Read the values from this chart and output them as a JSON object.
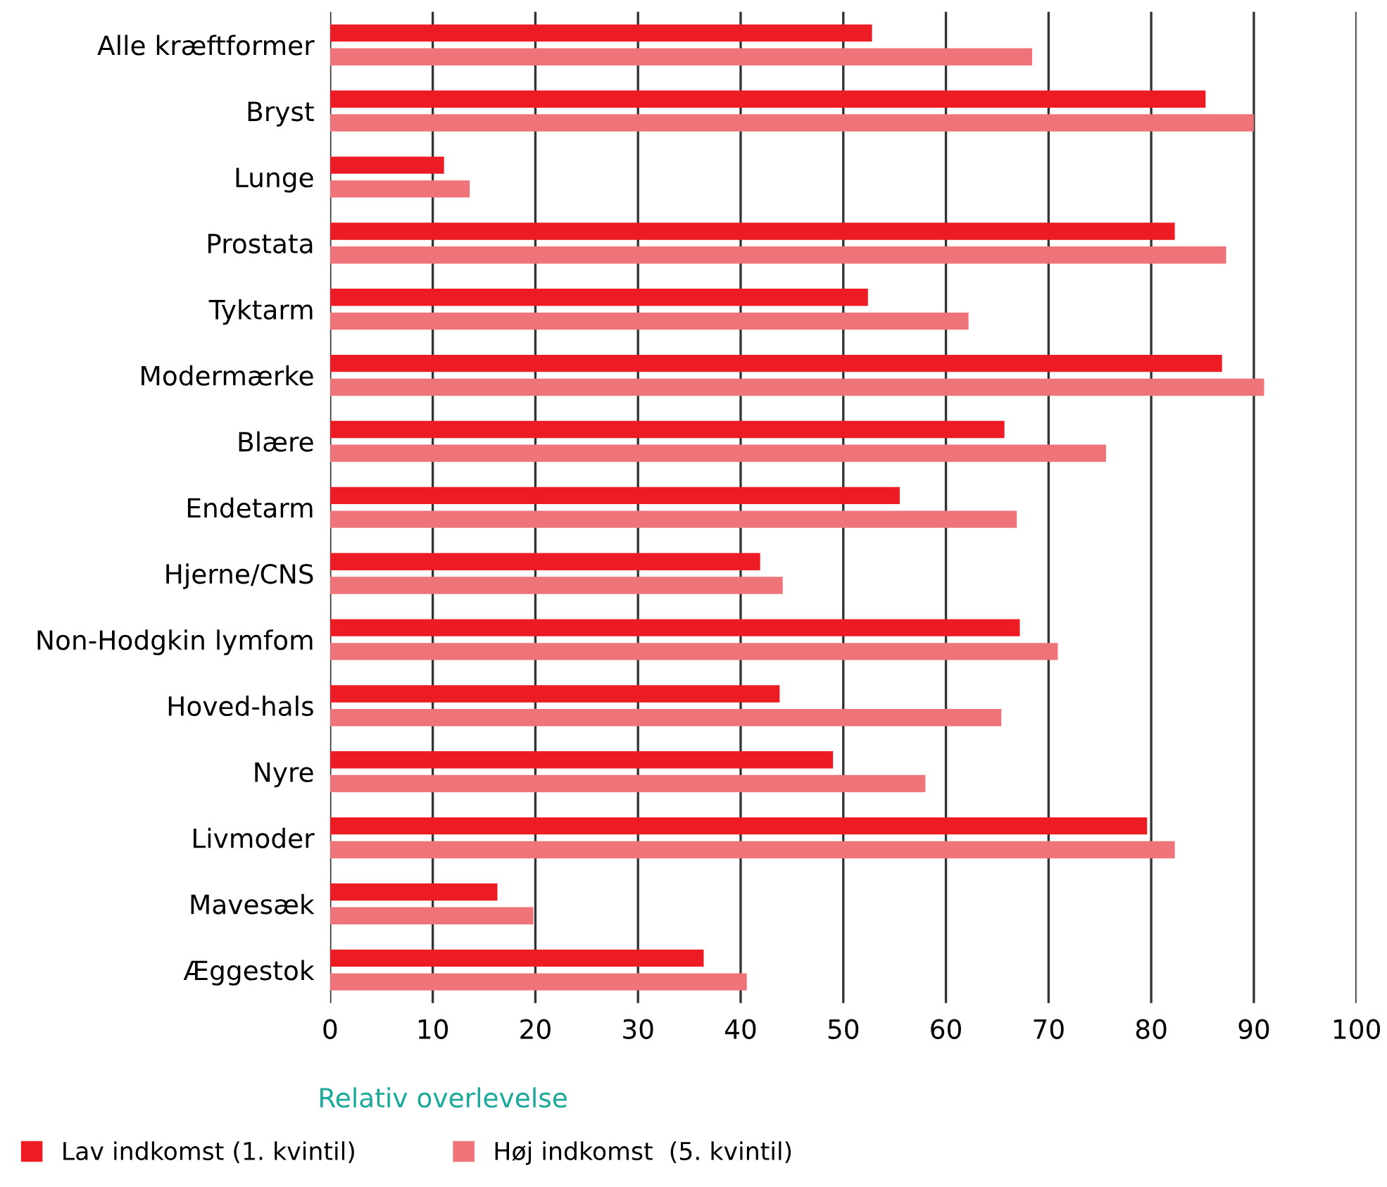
{
  "chart_data": {
    "type": "bar",
    "orientation": "horizontal",
    "xlabel": "Relativ overlevelse",
    "categories": [
      "Alle kræftformer",
      "Bryst",
      "Lunge",
      "Prostata",
      "Tyktarm",
      "Modermærke",
      "Blære",
      "Endetarm",
      "Hjerne/CNS",
      "Non-Hodgkin lymfom",
      "Hoved-hals",
      "Nyre",
      "Livmoder",
      "Mavesæk",
      "Æggestok"
    ],
    "series": [
      {
        "name": "Lav indkomst (1. kvintil)",
        "color": "#ed1c24",
        "values": [
          52.8,
          85.3,
          11.1,
          82.3,
          52.4,
          86.9,
          65.7,
          55.5,
          41.9,
          67.2,
          43.8,
          49.0,
          79.6,
          16.3,
          36.4
        ]
      },
      {
        "name": "Høj indkomst  (5. kvintil)",
        "color": "#ef7479",
        "values": [
          68.4,
          90.0,
          13.6,
          87.3,
          62.2,
          91.0,
          75.6,
          66.9,
          44.1,
          70.9,
          65.4,
          58.0,
          82.3,
          19.8,
          40.6
        ]
      }
    ],
    "xlim": [
      0,
      100
    ],
    "xticks": [
      0,
      10,
      20,
      30,
      40,
      50,
      60,
      70,
      80,
      90,
      100
    ],
    "grid": "x",
    "legend": "bottom"
  }
}
